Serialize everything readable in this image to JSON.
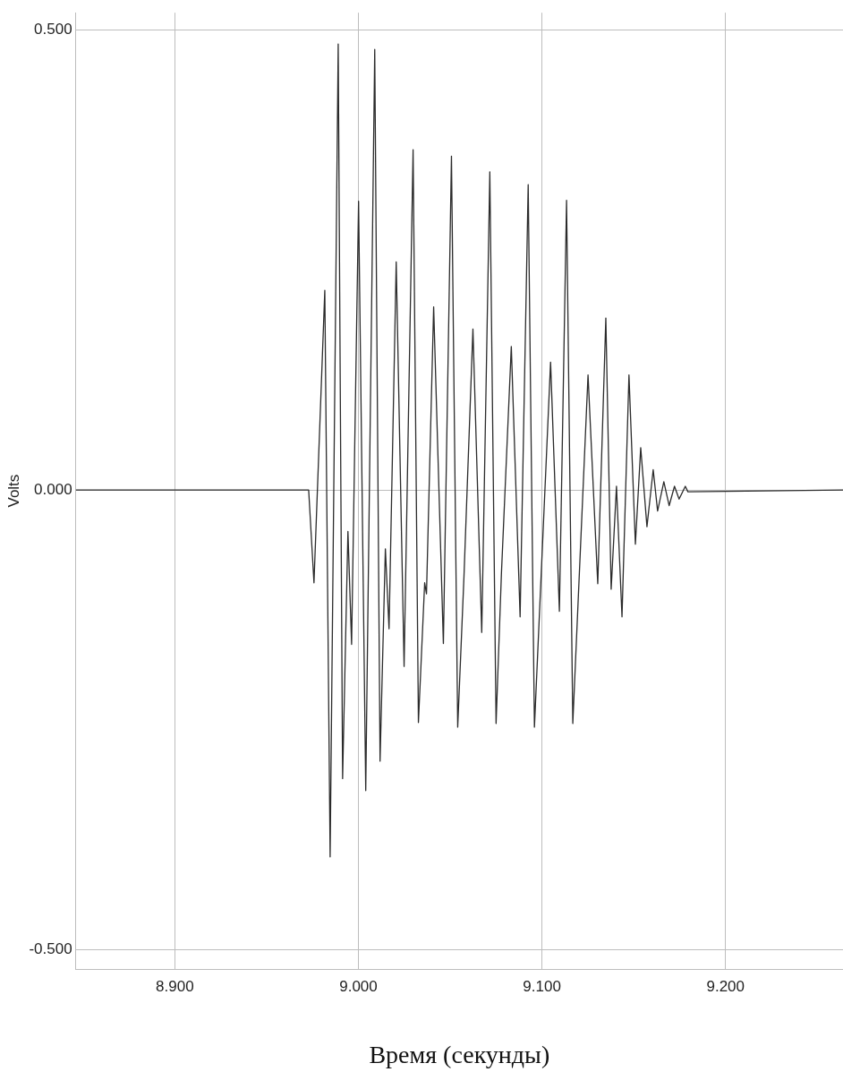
{
  "chart_data": {
    "type": "line",
    "xlabel": "Время (секунды)",
    "ylabel": "Volts",
    "color": "#2b2b2b",
    "x": [
      8.846,
      8.9729,
      8.9758,
      8.9817,
      8.9846,
      8.989,
      8.9914,
      8.9943,
      8.9963,
      9.0001,
      9.004,
      9.0089,
      9.0118,
      9.0147,
      9.0167,
      9.0206,
      9.0249,
      9.0298,
      9.0327,
      9.0361,
      9.0371,
      9.041,
      9.0463,
      9.0507,
      9.0541,
      9.0575,
      9.0624,
      9.0672,
      9.0716,
      9.075,
      9.0779,
      9.0833,
      9.0881,
      9.0925,
      9.0959,
      9.1047,
      9.1095,
      9.1134,
      9.1168,
      9.1251,
      9.1304,
      9.1348,
      9.1377,
      9.1406,
      9.1436,
      9.1474,
      9.1509,
      9.1538,
      9.1572,
      9.1606,
      9.163,
      9.1664,
      9.1693,
      9.1722,
      9.1747,
      9.1781,
      9.1795,
      9.264
    ],
    "values": [
      0,
      0,
      -0.101,
      0.217,
      -0.399,
      0.485,
      -0.314,
      -0.045,
      -0.168,
      0.314,
      -0.327,
      0.479,
      -0.295,
      -0.064,
      -0.151,
      0.248,
      -0.192,
      0.37,
      -0.253,
      -0.101,
      -0.113,
      0.199,
      -0.167,
      0.363,
      -0.258,
      -0.095,
      0.175,
      -0.155,
      0.346,
      -0.254,
      -0.092,
      0.156,
      -0.138,
      0.332,
      -0.258,
      0.139,
      -0.132,
      0.315,
      -0.254,
      0.125,
      -0.102,
      0.187,
      -0.108,
      0.004,
      -0.138,
      0.125,
      -0.059,
      0.046,
      -0.04,
      0.022,
      -0.023,
      0.009,
      -0.017,
      0.004,
      -0.01,
      0.004,
      -0.002,
      0
    ],
    "xlim": [
      8.846,
      9.264
    ],
    "ylim": [
      -0.521,
      0.519
    ],
    "xticks": [
      {
        "value": 8.9,
        "label": "8.900"
      },
      {
        "value": 9.0,
        "label": "9.000"
      },
      {
        "value": 9.1,
        "label": "9.100"
      },
      {
        "value": 9.2,
        "label": "9.200"
      }
    ],
    "yticks": [
      {
        "value": -0.5,
        "label": "-0.500"
      },
      {
        "value": 0,
        "label": "0.000"
      },
      {
        "value": 0.5,
        "label": "0.500"
      }
    ],
    "grid": true
  }
}
